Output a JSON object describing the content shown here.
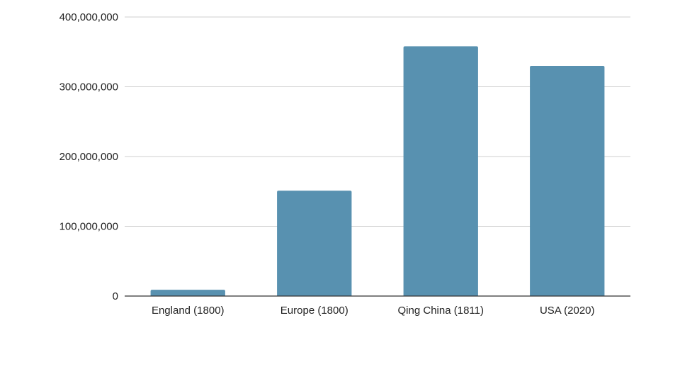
{
  "chart_data": {
    "type": "bar",
    "title": "",
    "xlabel": "",
    "ylabel": "",
    "categories": [
      "England (1800)",
      "Europe (1800)",
      "Qing China (1811)",
      "USA (2020)"
    ],
    "values": [
      9000000,
      151000000,
      358000000,
      330000000
    ],
    "ylim": [
      0,
      400000000
    ],
    "yticks": [
      0,
      100000000,
      200000000,
      300000000,
      400000000
    ],
    "ytick_labels": [
      "0",
      "100,000,000",
      "200,000,000",
      "300,000,000",
      "400,000,000"
    ],
    "bar_color": "#5891b0",
    "grid": true,
    "legend": "none"
  }
}
